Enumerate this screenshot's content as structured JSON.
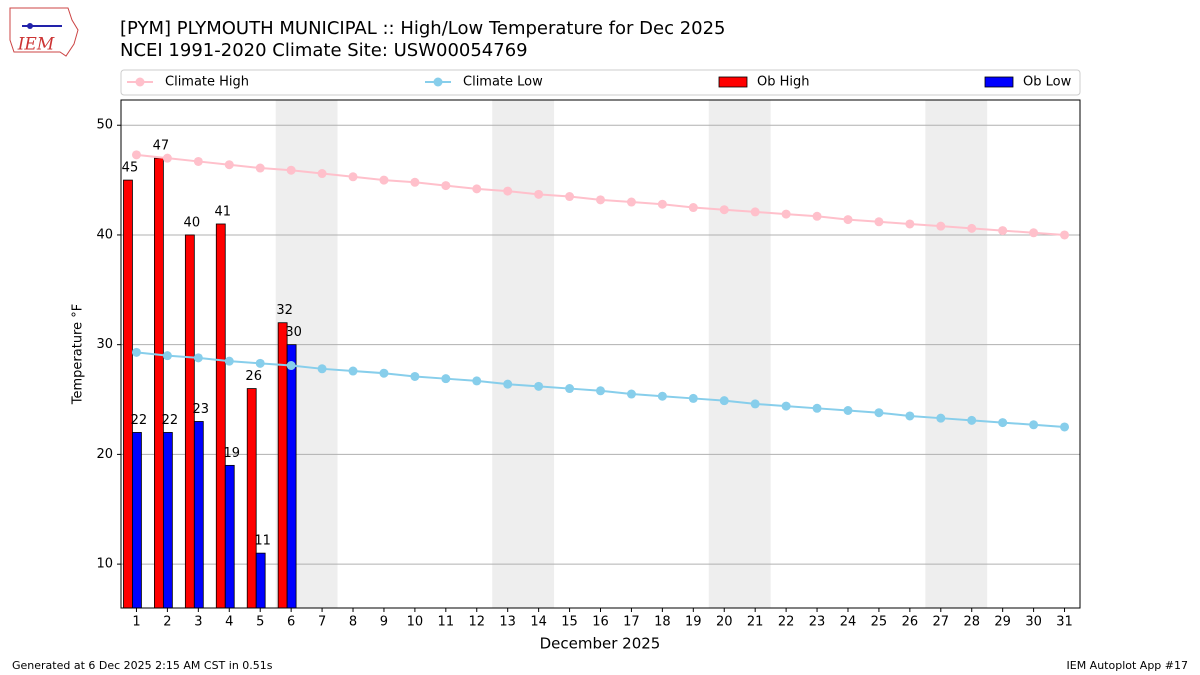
{
  "chart_data": {
    "type": "bar",
    "title": "[PYM] PLYMOUTH MUNICIPAL :: High/Low Temperature for Dec 2025",
    "subtitle": "NCEI 1991-2020 Climate Site: USW00054769",
    "x_label": "December 2025",
    "y_label": "Temperature °F",
    "footer_left": "Generated at 6 Dec 2025 2:15 AM CST in 0.51s",
    "footer_right": "IEM Autoplot App #17",
    "logo_text": "IEM",
    "x": [
      1,
      2,
      3,
      4,
      5,
      6,
      7,
      8,
      9,
      10,
      11,
      12,
      13,
      14,
      15,
      16,
      17,
      18,
      19,
      20,
      21,
      22,
      23,
      24,
      25,
      26,
      27,
      28,
      29,
      30,
      31
    ],
    "xlim": [
      0.5,
      31.5
    ],
    "xticks": [
      1,
      2,
      3,
      4,
      5,
      6,
      7,
      8,
      9,
      10,
      11,
      12,
      13,
      14,
      15,
      16,
      17,
      18,
      19,
      20,
      21,
      22,
      23,
      24,
      25,
      26,
      27,
      28,
      29,
      30,
      31
    ],
    "ylim": [
      6,
      52.3
    ],
    "yticks": [
      10,
      20,
      30,
      40,
      50
    ],
    "grid": true,
    "legend": "top",
    "weekend_spans": [
      [
        5.5,
        7.5
      ],
      [
        12.5,
        14.5
      ],
      [
        19.5,
        21.5
      ],
      [
        26.5,
        28.5
      ]
    ],
    "weekend_color": "#eeeeee",
    "series": [
      {
        "name": "Climate High",
        "kind": "line",
        "color": "#ffc0cb",
        "values": [
          47.3,
          47.0,
          46.7,
          46.4,
          46.1,
          45.9,
          45.6,
          45.3,
          45.0,
          44.8,
          44.5,
          44.2,
          44.0,
          43.7,
          43.5,
          43.2,
          43.0,
          42.8,
          42.5,
          42.3,
          42.1,
          41.9,
          41.7,
          41.4,
          41.2,
          41.0,
          40.8,
          40.6,
          40.4,
          40.2,
          40.0
        ]
      },
      {
        "name": "Climate Low",
        "kind": "line",
        "color": "#87ceeb",
        "values": [
          29.3,
          29.0,
          28.8,
          28.5,
          28.3,
          28.1,
          27.8,
          27.6,
          27.4,
          27.1,
          26.9,
          26.7,
          26.4,
          26.2,
          26.0,
          25.8,
          25.5,
          25.3,
          25.1,
          24.9,
          24.6,
          24.4,
          24.2,
          24.0,
          23.8,
          23.5,
          23.3,
          23.1,
          22.9,
          22.7,
          22.5
        ]
      },
      {
        "name": "Ob High",
        "kind": "bar",
        "color": "#ff0000",
        "values": [
          45,
          47,
          40,
          41,
          26,
          32,
          null,
          null,
          null,
          null,
          null,
          null,
          null,
          null,
          null,
          null,
          null,
          null,
          null,
          null,
          null,
          null,
          null,
          null,
          null,
          null,
          null,
          null,
          null,
          null,
          null
        ]
      },
      {
        "name": "Ob Low",
        "kind": "bar",
        "color": "#0000ff",
        "values": [
          22,
          22,
          23,
          19,
          11,
          30,
          null,
          null,
          null,
          null,
          null,
          null,
          null,
          null,
          null,
          null,
          null,
          null,
          null,
          null,
          null,
          null,
          null,
          null,
          null,
          null,
          null,
          null,
          null,
          null,
          null
        ]
      }
    ]
  }
}
